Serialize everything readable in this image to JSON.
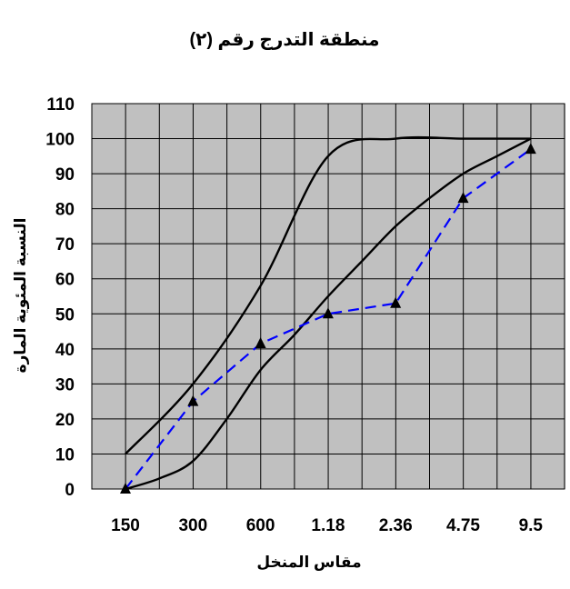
{
  "chart_data": {
    "type": "line",
    "title": "منطقة التدرج رقم (٢)",
    "xlabel": "مقاس المنخل",
    "ylabel": "النسبة المئوية المارة",
    "categories": [
      "150",
      "300",
      "600",
      "1.18",
      "2.36",
      "4.75",
      "9.5"
    ],
    "y_ticks": [
      0,
      10,
      20,
      30,
      40,
      50,
      60,
      70,
      80,
      90,
      100,
      110
    ],
    "ylim": [
      0,
      110
    ],
    "grid": true,
    "plot_background": "#c0c0c0",
    "series": [
      {
        "role": "upper-limit",
        "style": "solid",
        "color": "#000000",
        "x": [
          0,
          1,
          2,
          3,
          4,
          5,
          6
        ],
        "values": [
          10,
          30,
          58,
          95,
          100,
          100,
          100
        ]
      },
      {
        "role": "lower-limit",
        "style": "solid",
        "color": "#000000",
        "x": [
          0,
          0.5,
          1,
          1.5,
          2,
          2.5,
          3,
          3.5,
          4,
          4.5,
          5,
          5.5,
          6
        ],
        "values": [
          0,
          3,
          8,
          20,
          34,
          44,
          55,
          65,
          75,
          83,
          90,
          95,
          100
        ]
      },
      {
        "role": "sample",
        "style": "dashed",
        "color": "#0000ff",
        "marker": "triangle",
        "marker_color": "#000000",
        "x": [
          0,
          1,
          2,
          3,
          4,
          5,
          6
        ],
        "values": [
          0,
          25,
          41.5,
          50,
          53,
          83,
          97
        ]
      }
    ]
  }
}
